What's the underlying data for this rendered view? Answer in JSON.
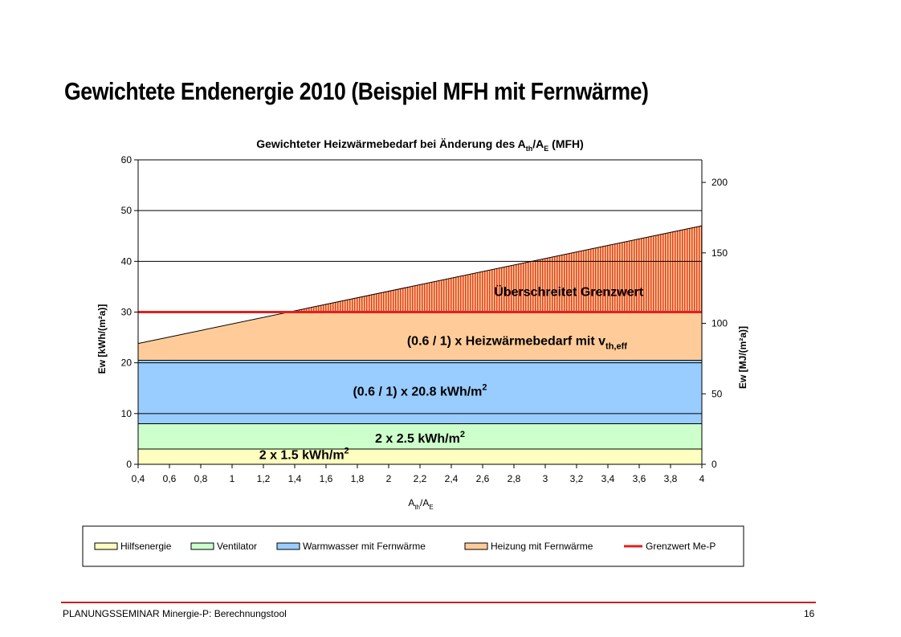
{
  "page": {
    "title": "Gewichtete Endenergie 2010 (Beispiel MFH mit Fernwärme)",
    "footer_left": "PLANUNGSSEMINAR Minergie-P: Berechnungstool",
    "footer_right": "16"
  },
  "chart_data": {
    "type": "area",
    "title": "Gewichteter Heizwärmebedarf bei Änderung des A_th/A_E (MFH)",
    "title_parts": {
      "prefix": "Gewichteter Heizwärmebedarf bei Änderung des A",
      "sub1": "th",
      "mid": "/A",
      "sub2": "E",
      "suffix": " (MFH)"
    },
    "xlabel": "A_th/A_E",
    "xlabel_parts": {
      "a": "A",
      "sub1": "th",
      "b": "/A",
      "sub2": "E"
    },
    "ylabel": "Ew [kWh/(m²a)]",
    "y2label": "Ew [MJ/(m²a)]",
    "xlim": [
      0.4,
      4
    ],
    "ylim": [
      0,
      60
    ],
    "y2lim": [
      0,
      216
    ],
    "x_ticks": [
      0.4,
      0.6,
      0.8,
      1,
      1.2,
      1.4,
      1.6,
      1.8,
      2,
      2.2,
      2.4,
      2.6,
      2.8,
      3,
      3.2,
      3.4,
      3.6,
      3.8,
      4
    ],
    "x_tick_labels": [
      "0,4",
      "0,6",
      "0,8",
      "1",
      "1,2",
      "1,4",
      "1,6",
      "1,8",
      "2",
      "2,2",
      "2,4",
      "2,6",
      "2,8",
      "3",
      "3,2",
      "3,4",
      "3,6",
      "3,8",
      "4"
    ],
    "y_ticks": [
      0,
      10,
      20,
      30,
      40,
      50,
      60
    ],
    "y_tick_labels": [
      "0",
      "10",
      "20",
      "30",
      "40",
      "50",
      "60"
    ],
    "y2_ticks": [
      0,
      50,
      100,
      150,
      200
    ],
    "y2_tick_labels": [
      "0",
      "50",
      "100",
      "150",
      "200"
    ],
    "grid": true,
    "legend_position": "bottom",
    "x": [
      0.4,
      4
    ],
    "series": [
      {
        "name": "Hilfsenergie",
        "kind": "stacked-area",
        "values": [
          3,
          3
        ],
        "color": "#ffffc0"
      },
      {
        "name": "Ventilator",
        "kind": "stacked-area",
        "values": [
          5,
          5
        ],
        "color": "#ccffcc"
      },
      {
        "name": "Warmwasser mit Fernwärme",
        "kind": "stacked-area",
        "values": [
          12.5,
          12.5
        ],
        "color": "#99ccff"
      },
      {
        "name": "Heizung mit Fernwärme",
        "kind": "stacked-area",
        "values": [
          3.3,
          26.5
        ],
        "color": "#ffcc99"
      },
      {
        "name": "Grenzwert Me-P",
        "kind": "line",
        "values": [
          30,
          30
        ],
        "color": "#e02020"
      }
    ],
    "exceed_hatch_color": "#e04020",
    "annotations": [
      {
        "text": "Überschreitet Grenzwert",
        "x": 3.15,
        "y": 33.2
      },
      {
        "text": "(0.6 / 1) x Heizwärmebedarf mit v",
        "sub": "th,eff",
        "x": 2.82,
        "y": 23.5
      },
      {
        "text": "(0.6 / 1) x 20.8 kWh/m",
        "sup": "2",
        "x": 2.2,
        "y": 13.5
      },
      {
        "text": "2 x 2.5 kWh/m",
        "sup": "2",
        "x": 2.2,
        "y": 4.3
      },
      {
        "text": "2 x 1.5 kWh/m",
        "sup": "2",
        "x": 1.46,
        "y": 1
      }
    ]
  }
}
